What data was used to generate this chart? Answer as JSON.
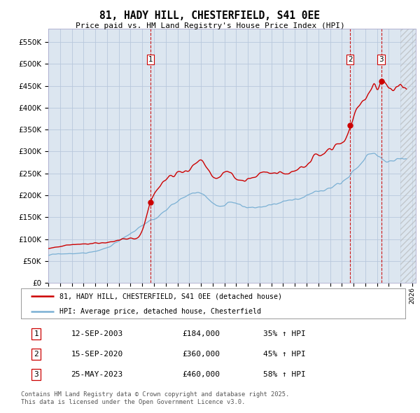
{
  "title": "81, HADY HILL, CHESTERFIELD, S41 0EE",
  "subtitle": "Price paid vs. HM Land Registry's House Price Index (HPI)",
  "ylim": [
    0,
    580000
  ],
  "yticks": [
    0,
    50000,
    100000,
    150000,
    200000,
    250000,
    300000,
    350000,
    400000,
    450000,
    500000,
    550000
  ],
  "xlim_start": 1995.0,
  "xlim_end": 2026.3,
  "red_line_color": "#cc0000",
  "blue_line_color": "#7ab0d4",
  "vline_color": "#cc0000",
  "grid_color": "#aaaacc",
  "background_color": "#dce6f0",
  "legend_entry1": "81, HADY HILL, CHESTERFIELD, S41 0EE (detached house)",
  "legend_entry2": "HPI: Average price, detached house, Chesterfield",
  "transaction1_label": "1",
  "transaction1_date": "12-SEP-2003",
  "transaction1_price": "£184,000",
  "transaction1_hpi": "35% ↑ HPI",
  "transaction1_x": 2003.7,
  "transaction1_price_val": 184000,
  "transaction2_label": "2",
  "transaction2_date": "15-SEP-2020",
  "transaction2_price": "£360,000",
  "transaction2_hpi": "45% ↑ HPI",
  "transaction2_x": 2020.7,
  "transaction2_price_val": 360000,
  "transaction3_label": "3",
  "transaction3_date": "25-MAY-2023",
  "transaction3_price": "£460,000",
  "transaction3_hpi": "58% ↑ HPI",
  "transaction3_x": 2023.37,
  "transaction3_price_val": 460000,
  "footnote": "Contains HM Land Registry data © Crown copyright and database right 2025.\nThis data is licensed under the Open Government Licence v3.0."
}
